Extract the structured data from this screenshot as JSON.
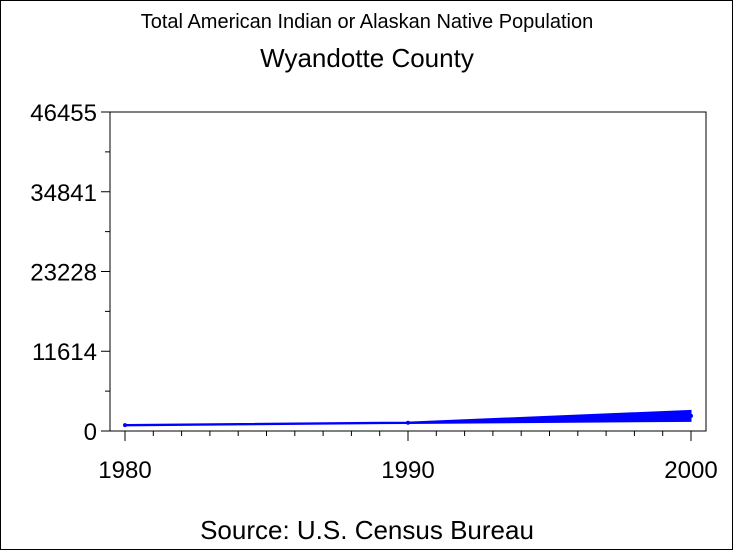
{
  "chart_data": {
    "type": "area",
    "title": "Total American Indian or Alaskan Native Population",
    "subtitle": "Wyandotte County",
    "footnote": "Source: U.S. Census Bureau",
    "xlabel": "",
    "ylabel": "",
    "xlim": [
      1980,
      2000
    ],
    "ylim": [
      0,
      46455
    ],
    "x_ticks": [
      1980,
      1990,
      2000
    ],
    "y_ticks": [
      0,
      11614,
      23228,
      34841,
      46455
    ],
    "series": [
      {
        "color": "#0000ff",
        "x": [
          1980,
          1990,
          2000
        ],
        "lower": [
          750,
          1100,
          1400
        ],
        "upper": [
          950,
          1300,
          3000
        ]
      }
    ],
    "grid": false,
    "legend": "none"
  }
}
